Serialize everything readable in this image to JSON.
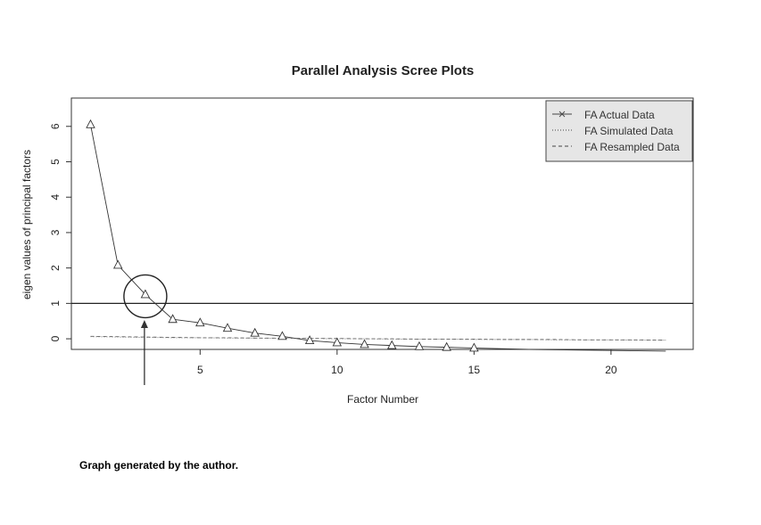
{
  "chart_data": {
    "type": "line",
    "title": "Parallel Analysis Scree Plots",
    "xlabel": "Factor Number",
    "ylabel": "eigen values of principal factors",
    "xlim": [
      0.3,
      23.0
    ],
    "ylim": [
      -0.3,
      6.8
    ],
    "x_ticks": [
      5,
      10,
      15,
      20
    ],
    "y_ticks": [
      0,
      1,
      2,
      3,
      4,
      5,
      6
    ],
    "reference_line_y": 1,
    "grid": false,
    "legend_position": "top-right",
    "legend": [
      {
        "label": "FA  Actual Data",
        "style": "solid-x"
      },
      {
        "label": "FA  Simulated Data",
        "style": "dotted"
      },
      {
        "label": "FA  Resampled Data",
        "style": "dashed"
      }
    ],
    "series": [
      {
        "name": "FA  Actual Data",
        "x": [
          1,
          2,
          3,
          4,
          5,
          6,
          7,
          8,
          9,
          10,
          11,
          12,
          13,
          14,
          15,
          16,
          17,
          18,
          19,
          20,
          21,
          22
        ],
        "values": [
          6.05,
          2.08,
          1.25,
          0.55,
          0.45,
          0.3,
          0.16,
          0.07,
          -0.05,
          -0.11,
          -0.16,
          -0.19,
          -0.22,
          -0.24,
          -0.26,
          -0.28,
          -0.3,
          -0.31,
          -0.32,
          -0.33,
          -0.34,
          -0.35
        ]
      },
      {
        "name": "FA  Simulated Data",
        "x": [
          1,
          2,
          3,
          4,
          5,
          6,
          7,
          8,
          9,
          10,
          11,
          12,
          13,
          14,
          15,
          16,
          17,
          18,
          19,
          20,
          21,
          22
        ],
        "values": [
          0.06,
          0.05,
          0.04,
          0.03,
          0.03,
          0.02,
          0.02,
          0.01,
          0.01,
          0.0,
          0.0,
          -0.01,
          -0.01,
          -0.01,
          -0.02,
          -0.02,
          -0.02,
          -0.03,
          -0.03,
          -0.03,
          -0.04,
          -0.04
        ]
      },
      {
        "name": "FA  Resampled Data",
        "x": [
          1,
          2,
          3,
          4,
          5,
          6,
          7,
          8,
          9,
          10,
          11,
          12,
          13,
          14,
          15,
          16,
          17,
          18,
          19,
          20,
          21,
          22
        ],
        "values": [
          0.07,
          0.06,
          0.05,
          0.04,
          0.03,
          0.03,
          0.02,
          0.02,
          0.01,
          0.01,
          0.0,
          0.0,
          -0.01,
          -0.01,
          -0.01,
          -0.02,
          -0.02,
          -0.02,
          -0.03,
          -0.03,
          -0.03,
          -0.04
        ]
      }
    ],
    "annotation": {
      "type": "circle-and-arrow",
      "x": 3,
      "y": 1.25
    }
  },
  "caption": "Graph generated by the author."
}
